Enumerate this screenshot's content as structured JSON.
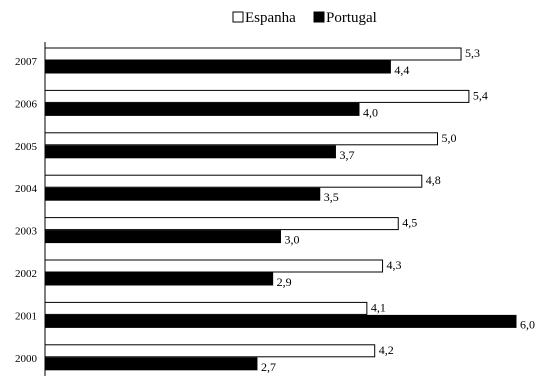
{
  "chart_data": {
    "type": "bar",
    "orientation": "horizontal",
    "categories": [
      "2007",
      "2006",
      "2005",
      "2004",
      "2003",
      "2002",
      "2001",
      "2000"
    ],
    "series": [
      {
        "name": "Espanha",
        "color": "#ffffff",
        "values": [
          5.3,
          5.4,
          5.0,
          4.8,
          4.5,
          4.3,
          4.1,
          4.2
        ],
        "labels": [
          "5,3",
          "5,4",
          "5,0",
          "4,8",
          "4,5",
          "4,3",
          "4,1",
          "4,2"
        ]
      },
      {
        "name": "Portugal",
        "color": "#000000",
        "values": [
          4.4,
          4.0,
          3.7,
          3.5,
          3.0,
          2.9,
          6.0,
          2.7
        ],
        "labels": [
          "4,4",
          "4,0",
          "3,7",
          "3,5",
          "3,0",
          "2,9",
          "6,0",
          "2,7"
        ]
      }
    ],
    "xlim": [
      0,
      6.0
    ],
    "grid": false,
    "legend_position": "top-center",
    "title": "",
    "xlabel": "",
    "ylabel": ""
  }
}
